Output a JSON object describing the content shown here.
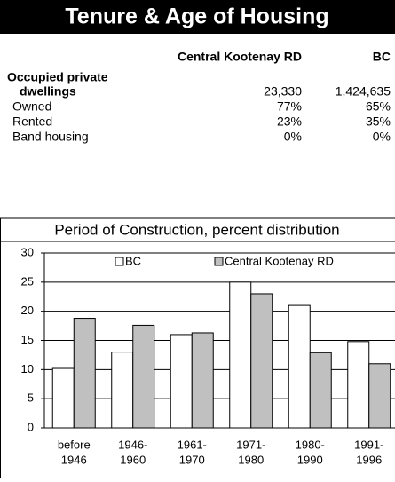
{
  "header": {
    "title": "Tenure & Age of Housing"
  },
  "table": {
    "columns": [
      "Central Kootenay RD",
      "BC"
    ],
    "rows": [
      {
        "label": [
          "Occupied private",
          "dwellings"
        ],
        "values": [
          "23,330",
          "1,424,635"
        ]
      },
      {
        "label": [
          "Owned"
        ],
        "values": [
          "77%",
          "65%"
        ]
      },
      {
        "label": [
          "Rented"
        ],
        "values": [
          "23%",
          "35%"
        ]
      },
      {
        "label": [
          "Band housing"
        ],
        "values": [
          "0%",
          "0%"
        ]
      }
    ]
  },
  "chart_data": {
    "type": "bar",
    "title": "Period of Construction, percent distribution",
    "categories": [
      [
        "before",
        "1946"
      ],
      [
        "1946-",
        "1960"
      ],
      [
        "1961-",
        "1970"
      ],
      [
        "1971-",
        "1980"
      ],
      [
        "1980-",
        "1990"
      ],
      [
        "1991-",
        "1996"
      ]
    ],
    "series": [
      {
        "name": "BC",
        "color": "#ffffff",
        "values": [
          10.2,
          13,
          16,
          25,
          21,
          14.8
        ]
      },
      {
        "name": "Central Kootenay RD",
        "color": "#c0c0c0",
        "values": [
          18.8,
          17.6,
          16.3,
          23,
          12.9,
          11
        ]
      }
    ],
    "ylim": [
      0,
      30
    ],
    "yticks": [
      0,
      5,
      10,
      15,
      20,
      25,
      30
    ],
    "grid": true
  }
}
